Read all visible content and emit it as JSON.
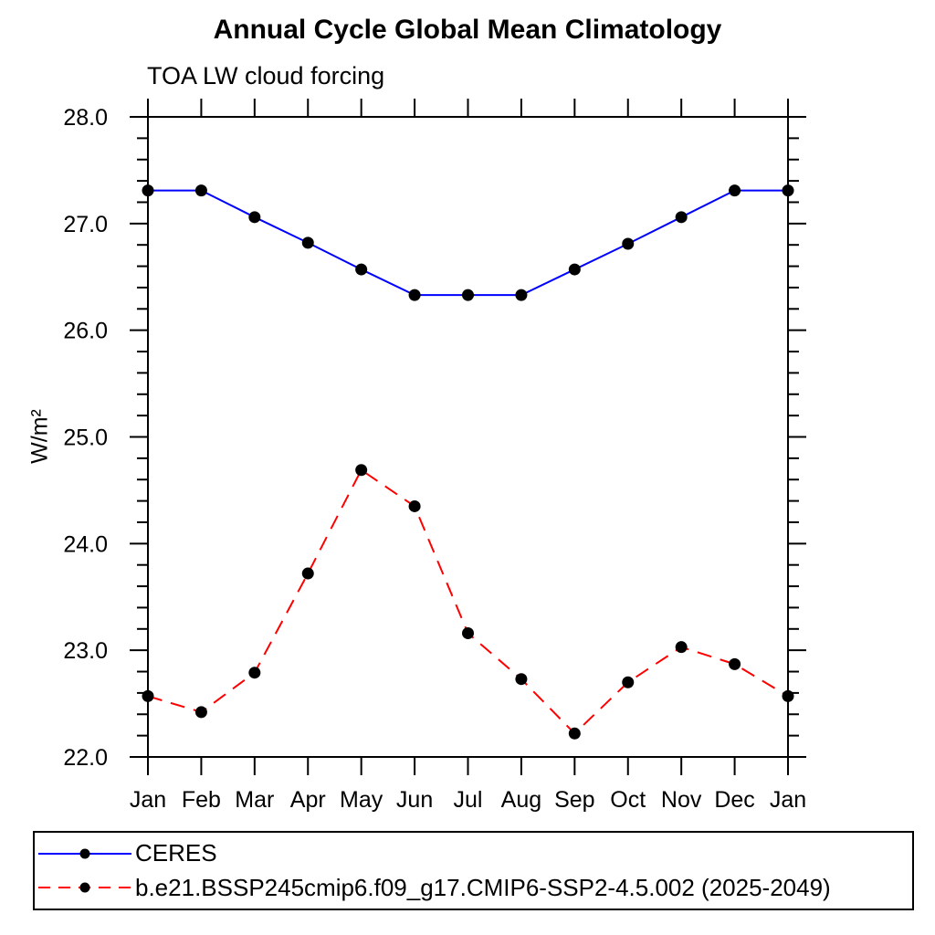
{
  "title": "Annual Cycle Global Mean Climatology",
  "subtitle": "TOA LW cloud forcing",
  "y_axis_title": "W/m²",
  "colors": {
    "ceres_line": "#0000ff",
    "model_line": "#ff0000",
    "marker": "#000000",
    "axis": "#000000",
    "background": "#ffffff"
  },
  "chart_data": {
    "type": "line",
    "title": "Annual Cycle Global Mean Climatology",
    "subtitle": "TOA LW cloud forcing",
    "ylabel": "W/m²",
    "xlabel": "",
    "categories": [
      "Jan",
      "Feb",
      "Mar",
      "Apr",
      "May",
      "Jun",
      "Jul",
      "Aug",
      "Sep",
      "Oct",
      "Nov",
      "Dec",
      "Jan"
    ],
    "series": [
      {
        "name": "CERES",
        "color": "#0000ff",
        "line_style": "solid",
        "marker": "filled-circle",
        "marker_color": "#000000",
        "values": [
          27.31,
          27.31,
          27.06,
          26.82,
          26.57,
          26.33,
          26.33,
          26.33,
          26.57,
          26.81,
          27.06,
          27.31,
          27.31
        ]
      },
      {
        "name": "b.e21.BSSP245cmip6.f09_g17.CMIP6-SSP2-4.5.002 (2025-2049)",
        "color": "#ff0000",
        "line_style": "dashed",
        "marker": "filled-circle",
        "marker_color": "#000000",
        "values": [
          22.57,
          22.42,
          22.79,
          23.72,
          24.69,
          24.35,
          23.16,
          22.73,
          22.22,
          22.7,
          23.03,
          22.87,
          22.57
        ]
      }
    ],
    "ylim": [
      22.0,
      28.0
    ],
    "ytick_major": [
      22.0,
      23.0,
      24.0,
      25.0,
      26.0,
      27.0,
      28.0
    ],
    "ytick_labels": [
      "22.0",
      "23.0",
      "24.0",
      "25.0",
      "26.0",
      "27.0",
      "28.0"
    ],
    "ytick_minor_step": 0.2,
    "grid": false,
    "legend_position": "bottom-left"
  }
}
